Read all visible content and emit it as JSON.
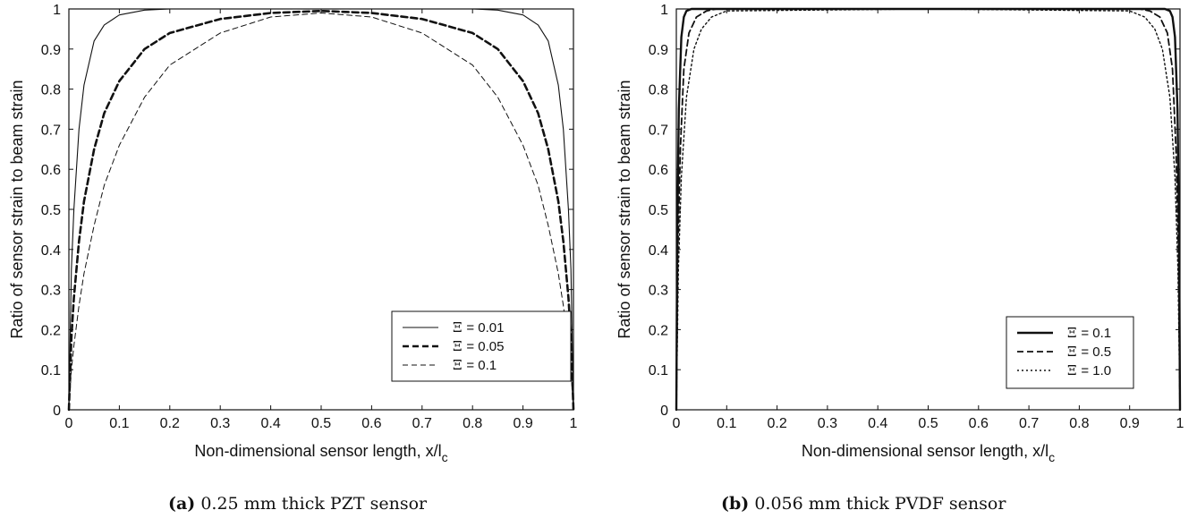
{
  "panels": [
    {
      "caption_tag": "(a)",
      "caption_text": "0.25 mm thick PZT sensor",
      "legend_symbol": "Ξ"
    },
    {
      "caption_tag": "(b)",
      "caption_text": "0.056 mm thick PVDF sensor",
      "legend_symbol": "Ξ"
    }
  ],
  "chart_data": [
    {
      "type": "line",
      "xlabel": "Non-dimensional sensor length, x/l",
      "xlabel_subscript": "c",
      "ylabel": "Ratio of sensor strain to beam strain",
      "xlim": [
        0,
        1
      ],
      "ylim": [
        0,
        1
      ],
      "x_ticks": [
        "0",
        "0.1",
        "0.2",
        "0.3",
        "0.4",
        "0.5",
        "0.6",
        "0.7",
        "0.8",
        "0.9",
        "1"
      ],
      "y_ticks": [
        "0",
        "0.1",
        "0.2",
        "0.3",
        "0.4",
        "0.5",
        "0.6",
        "0.7",
        "0.8",
        "0.9",
        "1"
      ],
      "grid": false,
      "legend_position": "bottom-right",
      "series": [
        {
          "name": "= 0.01",
          "style": "solid",
          "x": [
            0,
            0.005,
            0.01,
            0.02,
            0.03,
            0.05,
            0.07,
            0.1,
            0.15,
            0.2,
            0.5,
            0.8,
            0.85,
            0.9,
            0.93,
            0.95,
            0.97,
            0.98,
            0.99,
            0.995,
            1
          ],
          "y": [
            0,
            0.35,
            0.5,
            0.7,
            0.81,
            0.92,
            0.96,
            0.985,
            0.997,
            1.0,
            1.0,
            1.0,
            0.997,
            0.985,
            0.96,
            0.92,
            0.81,
            0.7,
            0.5,
            0.35,
            0
          ]
        },
        {
          "name": "= 0.05",
          "style": "bold-dashed",
          "x": [
            0,
            0.005,
            0.01,
            0.02,
            0.03,
            0.05,
            0.07,
            0.1,
            0.15,
            0.2,
            0.3,
            0.4,
            0.5,
            0.6,
            0.7,
            0.8,
            0.85,
            0.9,
            0.93,
            0.95,
            0.97,
            0.98,
            0.99,
            0.995,
            1
          ],
          "y": [
            0,
            0.18,
            0.28,
            0.42,
            0.52,
            0.65,
            0.74,
            0.82,
            0.9,
            0.94,
            0.975,
            0.99,
            0.995,
            0.99,
            0.975,
            0.94,
            0.9,
            0.82,
            0.74,
            0.65,
            0.52,
            0.42,
            0.28,
            0.18,
            0
          ]
        },
        {
          "name": "= 0.1",
          "style": "thin-dashed",
          "x": [
            0,
            0.005,
            0.01,
            0.02,
            0.03,
            0.05,
            0.07,
            0.1,
            0.15,
            0.2,
            0.3,
            0.4,
            0.5,
            0.6,
            0.7,
            0.8,
            0.85,
            0.9,
            0.93,
            0.95,
            0.97,
            0.98,
            0.99,
            0.995,
            1
          ],
          "y": [
            0,
            0.1,
            0.16,
            0.26,
            0.34,
            0.46,
            0.56,
            0.66,
            0.78,
            0.86,
            0.94,
            0.98,
            0.99,
            0.98,
            0.94,
            0.86,
            0.78,
            0.66,
            0.56,
            0.46,
            0.34,
            0.26,
            0.16,
            0.1,
            0
          ]
        }
      ]
    },
    {
      "type": "line",
      "xlabel": "Non-dimensional sensor length, x/l",
      "xlabel_subscript": "c",
      "ylabel": "Ratio of sensor strain to beam strain",
      "xlim": [
        0,
        1
      ],
      "ylim": [
        0,
        1
      ],
      "x_ticks": [
        "0",
        "0.1",
        "0.2",
        "0.3",
        "0.4",
        "0.5",
        "0.6",
        "0.7",
        "0.8",
        "0.9",
        "1"
      ],
      "y_ticks": [
        "0",
        "0.1",
        "0.2",
        "0.3",
        "0.4",
        "0.5",
        "0.6",
        "0.7",
        "0.8",
        "0.9",
        "1"
      ],
      "grid": false,
      "legend_position": "bottom-right",
      "series": [
        {
          "name": "= 0.1",
          "style": "bold-solid",
          "x": [
            0,
            0.002,
            0.005,
            0.01,
            0.015,
            0.02,
            0.03,
            0.05,
            0.5,
            0.95,
            0.97,
            0.98,
            0.985,
            0.99,
            0.995,
            0.998,
            1
          ],
          "y": [
            0,
            0.45,
            0.75,
            0.93,
            0.98,
            0.995,
            1.0,
            1.0,
            1.0,
            1.0,
            1.0,
            0.995,
            0.98,
            0.93,
            0.75,
            0.45,
            0
          ]
        },
        {
          "name": "= 0.5",
          "style": "dashed",
          "x": [
            0,
            0.003,
            0.008,
            0.015,
            0.025,
            0.04,
            0.06,
            0.08,
            0.5,
            0.92,
            0.94,
            0.96,
            0.975,
            0.985,
            0.992,
            0.997,
            1
          ],
          "y": [
            0,
            0.4,
            0.65,
            0.85,
            0.94,
            0.98,
            0.995,
            1.0,
            1.0,
            1.0,
            0.995,
            0.98,
            0.94,
            0.85,
            0.65,
            0.4,
            0
          ]
        },
        {
          "name": "= 1.0",
          "style": "dotted",
          "x": [
            0,
            0.004,
            0.01,
            0.02,
            0.035,
            0.05,
            0.07,
            0.1,
            0.5,
            0.9,
            0.93,
            0.95,
            0.965,
            0.98,
            0.99,
            0.996,
            1
          ],
          "y": [
            0,
            0.35,
            0.58,
            0.78,
            0.9,
            0.95,
            0.98,
            0.995,
            1.0,
            0.995,
            0.98,
            0.95,
            0.9,
            0.78,
            0.58,
            0.35,
            0
          ]
        }
      ]
    }
  ]
}
